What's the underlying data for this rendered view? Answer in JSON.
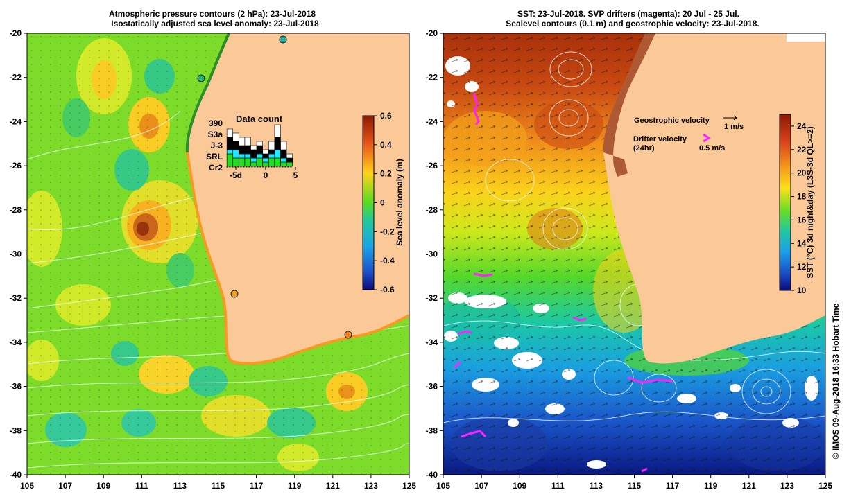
{
  "chart_data": [
    {
      "type": "heatmap",
      "title_line1": "Atmospheric pressure contours (2 hPa): 23-Jul-2018",
      "title_line2": "Isostatically adjusted sea level anomaly: 23-Jul-2018",
      "x_ticks": [
        "105",
        "107",
        "109",
        "111",
        "113",
        "115",
        "117",
        "119",
        "121",
        "123",
        "125"
      ],
      "y_ticks": [
        "-20",
        "-22",
        "-24",
        "-26",
        "-28",
        "-30",
        "-32",
        "-34",
        "-36",
        "-38",
        "-40"
      ],
      "xlim": [
        105,
        125
      ],
      "ylim": [
        -40,
        -20
      ],
      "colorbar": {
        "label": "Sea level anomaly (m)",
        "ticks": [
          "0.6",
          "0.4",
          "0.2",
          "0",
          "-0.2",
          "-0.4",
          "-0.6"
        ],
        "range": [
          -0.6,
          0.6
        ]
      },
      "inset": {
        "title": "Data count",
        "legend": [
          "390",
          "S3a",
          "J-3",
          "SRL",
          "Cr2"
        ],
        "legend_colors": [
          "#000000",
          "#ffffff",
          "#000000",
          "#00e5ff",
          "#00d000"
        ],
        "x_ticks": [
          "-5d",
          "0",
          "5"
        ],
        "bars": [
          {
            "day": -6,
            "total": 9,
            "s3a": 2,
            "j3": 3,
            "srl": 1,
            "cr2": 3
          },
          {
            "day": -5,
            "total": 8,
            "s3a": 2,
            "j3": 2,
            "srl": 2,
            "cr2": 2
          },
          {
            "day": -4,
            "total": 7,
            "s3a": 2,
            "j3": 2,
            "srl": 1,
            "cr2": 2
          },
          {
            "day": -3,
            "total": 7,
            "s3a": 2,
            "j3": 2,
            "srl": 1,
            "cr2": 2
          },
          {
            "day": -2,
            "total": 5,
            "s3a": 1,
            "j3": 2,
            "srl": 1,
            "cr2": 1
          },
          {
            "day": -1,
            "total": 6,
            "s3a": 1,
            "j3": 2,
            "srl": 1,
            "cr2": 2
          },
          {
            "day": 0,
            "total": 4,
            "s3a": 1,
            "j3": 1,
            "srl": 1,
            "cr2": 1
          },
          {
            "day": 1,
            "total": 6,
            "s3a": 2,
            "j3": 1,
            "srl": 1,
            "cr2": 2
          },
          {
            "day": 2,
            "total": 10,
            "s3a": 3,
            "j3": 3,
            "srl": 2,
            "cr2": 2
          },
          {
            "day": 3,
            "total": 6,
            "s3a": 2,
            "j3": 2,
            "srl": 1,
            "cr2": 1
          },
          {
            "day": 4,
            "total": 3,
            "s3a": 1,
            "j3": 1,
            "srl": 0,
            "cr2": 1
          }
        ]
      }
    },
    {
      "type": "heatmap",
      "title_line1": "SST: 23-Jul-2018. SVP drifters (magenta): 20 Jul - 25 Jul.",
      "title_line2": "Sealevel contours (0.1 m) and geostrophic velocity: 23-Jul-2018.",
      "x_ticks": [
        "105",
        "107",
        "109",
        "111",
        "113",
        "115",
        "117",
        "119",
        "121",
        "123",
        "125"
      ],
      "y_ticks": [
        "-20",
        "-22",
        "-24",
        "-26",
        "-28",
        "-30",
        "-32",
        "-34",
        "-36",
        "-38",
        "-40"
      ],
      "xlim": [
        105,
        125
      ],
      "ylim": [
        -40,
        -20
      ],
      "colorbar": {
        "label": "SST (°C) 3d night&day (L3S-3d QL>=2)",
        "ticks": [
          "24",
          "22",
          "20",
          "18",
          "16",
          "14",
          "12",
          "10"
        ],
        "range": [
          10,
          25
        ]
      },
      "legend": {
        "geo_label": "Geostrophic velocity",
        "geo_scale": "1 m/s",
        "drifter_label": "Drifter velocity",
        "drifter_sub": "(24hr)",
        "drifter_scale": "0.5 m/s"
      }
    }
  ],
  "credit": "© IMOS 09-Aug-2018 16:33 Hobart Time",
  "colors": {
    "land": "#fbc998",
    "drifter": "#ff22ff",
    "coast_edge": "#2a8f2a",
    "shelf_orange": "#f79a1f"
  }
}
